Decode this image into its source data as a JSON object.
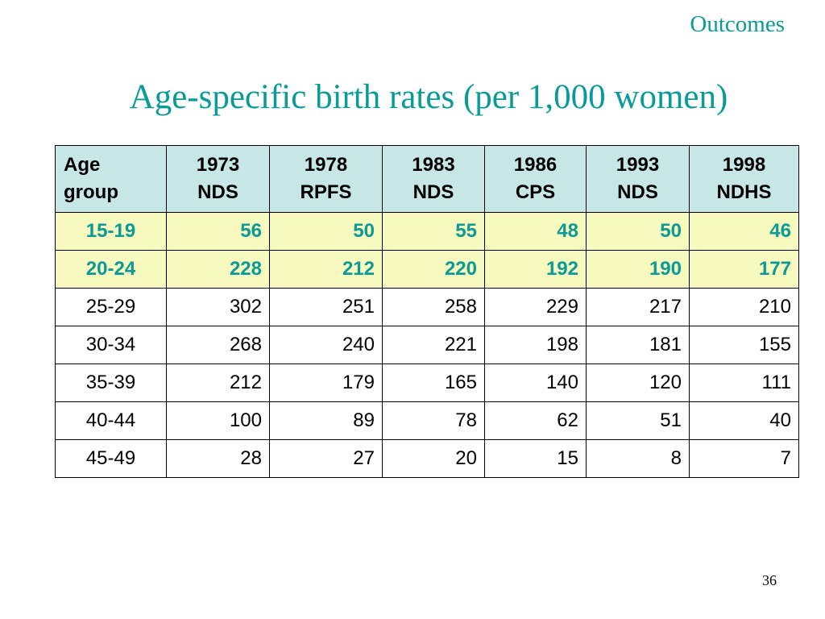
{
  "header": {
    "section": "Outcomes",
    "title": "Age-specific birth rates (per 1,000 women)"
  },
  "table": {
    "columns": [
      {
        "line1": "Age",
        "line2": "group"
      },
      {
        "line1": "1973",
        "line2": "NDS"
      },
      {
        "line1": "1978",
        "line2": "RPFS"
      },
      {
        "line1": "1983",
        "line2": "NDS"
      },
      {
        "line1": "1986",
        "line2": "CPS"
      },
      {
        "line1": "1993",
        "line2": "NDS"
      },
      {
        "line1": "1998",
        "line2": "NDHS"
      }
    ],
    "rows": [
      {
        "age": "15-19",
        "values": [
          "56",
          "50",
          "55",
          "48",
          "50",
          "46"
        ],
        "highlight": true
      },
      {
        "age": "20-24",
        "values": [
          "228",
          "212",
          "220",
          "192",
          "190",
          "177"
        ],
        "highlight": true
      },
      {
        "age": "25-29",
        "values": [
          "302",
          "251",
          "258",
          "229",
          "217",
          "210"
        ],
        "highlight": false
      },
      {
        "age": "30-34",
        "values": [
          "268",
          "240",
          "221",
          "198",
          "181",
          "155"
        ],
        "highlight": false
      },
      {
        "age": "35-39",
        "values": [
          "212",
          "179",
          "165",
          "140",
          "120",
          "111"
        ],
        "highlight": false
      },
      {
        "age": "40-44",
        "values": [
          "100",
          "89",
          "78",
          "62",
          "51",
          "40"
        ],
        "highlight": false
      },
      {
        "age": "45-49",
        "values": [
          "28",
          "27",
          "20",
          "15",
          "8",
          "7"
        ],
        "highlight": false
      }
    ]
  },
  "footer": {
    "page_number": "36"
  },
  "colors": {
    "accent": "#0a9a98",
    "header_fill": "#c7e6e6",
    "highlight_fill": "#f7f9bf"
  }
}
